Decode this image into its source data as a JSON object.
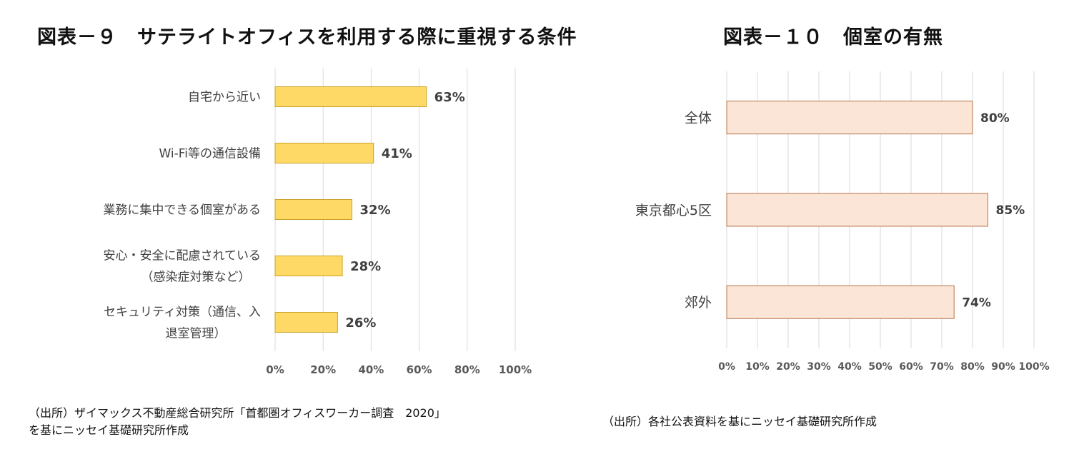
{
  "chart_data": [
    {
      "type": "bar",
      "orientation": "horizontal",
      "title": "図表－９　サテライトオフィスを利用する際に重視する条件",
      "categories": [
        [
          "自宅から近い"
        ],
        [
          "Wi-Fi等の通信設備"
        ],
        [
          "業務に集中できる個室がある"
        ],
        [
          "安心・安全に配慮されている",
          "（感染症対策など）"
        ],
        [
          "セキュリティ対策（通信、入",
          "退室管理）"
        ]
      ],
      "values": [
        63,
        41,
        32,
        28,
        26
      ],
      "data_labels": [
        "63%",
        "41%",
        "32%",
        "28%",
        "26%"
      ],
      "xlim": [
        0,
        100
      ],
      "xticks": [
        "0%",
        "20%",
        "40%",
        "60%",
        "80%",
        "100%"
      ],
      "grid": true,
      "bar_color": "#FFD966",
      "bar_border": "#C9A227",
      "source": [
        "（出所）ザイマックス不動産総合研究所「首都圏オフィスワーカー調査　2020」",
        "を基にニッセイ基礎研究所作成"
      ]
    },
    {
      "type": "bar",
      "orientation": "horizontal",
      "title": "図表－１０　個室の有無",
      "categories": [
        [
          "全体"
        ],
        [
          "東京都心5区"
        ],
        [
          "郊外"
        ]
      ],
      "values": [
        80,
        85,
        74
      ],
      "data_labels": [
        "80%",
        "85%",
        "74%"
      ],
      "xlim": [
        0,
        100
      ],
      "xticks": [
        "0%",
        "10%",
        "20%",
        "30%",
        "40%",
        "50%",
        "60%",
        "70%",
        "80%",
        "90%",
        "100%"
      ],
      "grid": true,
      "bar_color": "#FBE5D6",
      "bar_border": "#B7724A",
      "source": [
        "（出所）各社公表資料を基にニッセイ基礎研究所作成"
      ]
    }
  ]
}
